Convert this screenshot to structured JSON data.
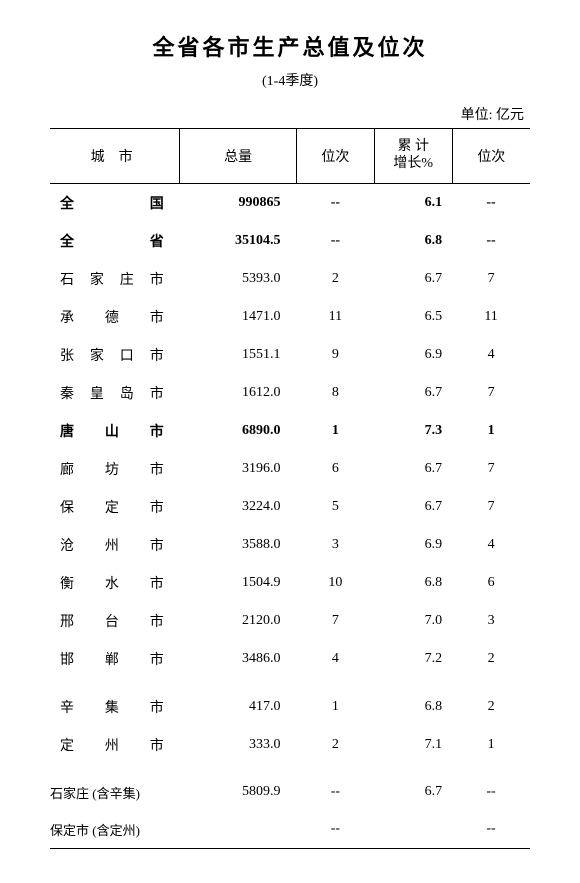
{
  "title": "全省各市生产总值及位次",
  "subtitle": "(1-4季度)",
  "unit_label": "单位: 亿元",
  "headers": {
    "city": "城　市",
    "total": "总量",
    "rank1": "位次",
    "growth": "累 计\n增长%",
    "rank2": "位次"
  },
  "groups": [
    {
      "rows": [
        {
          "city": "全　　国",
          "total": "990865",
          "rank1": "--",
          "growth": "6.1",
          "rank2": "--",
          "bold": true
        },
        {
          "city": "全　　省",
          "total": "35104.5",
          "rank1": "--",
          "growth": "6.8",
          "rank2": "--",
          "bold": true
        },
        {
          "city": "石家庄市",
          "total": "5393.0",
          "rank1": "2",
          "growth": "6.7",
          "rank2": "7"
        },
        {
          "city": "承 德 市",
          "total": "1471.0",
          "rank1": "11",
          "growth": "6.5",
          "rank2": "11"
        },
        {
          "city": "张家口市",
          "total": "1551.1",
          "rank1": "9",
          "growth": "6.9",
          "rank2": "4"
        },
        {
          "city": "秦皇岛市",
          "total": "1612.0",
          "rank1": "8",
          "growth": "6.7",
          "rank2": "7"
        },
        {
          "city": "唐 山 市",
          "total": "6890.0",
          "rank1": "1",
          "growth": "7.3",
          "rank2": "1",
          "bold": true
        },
        {
          "city": "廊 坊 市",
          "total": "3196.0",
          "rank1": "6",
          "growth": "6.7",
          "rank2": "7"
        },
        {
          "city": "保 定 市",
          "total": "3224.0",
          "rank1": "5",
          "growth": "6.7",
          "rank2": "7"
        },
        {
          "city": "沧 州 市",
          "total": "3588.0",
          "rank1": "3",
          "growth": "6.9",
          "rank2": "4"
        },
        {
          "city": "衡 水 市",
          "total": "1504.9",
          "rank1": "10",
          "growth": "6.8",
          "rank2": "6"
        },
        {
          "city": "邢 台 市",
          "total": "2120.0",
          "rank1": "7",
          "growth": "7.0",
          "rank2": "3"
        },
        {
          "city": "邯 郸 市",
          "total": "3486.0",
          "rank1": "4",
          "growth": "7.2",
          "rank2": "2"
        }
      ]
    },
    {
      "rows": [
        {
          "city": "辛 集 市",
          "total": "417.0",
          "rank1": "1",
          "growth": "6.8",
          "rank2": "2"
        },
        {
          "city": "定 州 市",
          "total": "333.0",
          "rank1": "2",
          "growth": "7.1",
          "rank2": "1"
        }
      ]
    },
    {
      "rows": [
        {
          "city": "石家庄 (含辛集)",
          "total": "5809.9",
          "rank1": "--",
          "growth": "6.7",
          "rank2": "--",
          "nojustify": true
        },
        {
          "city": "保定市 (含定州)",
          "total": "",
          "rank1": "--",
          "growth": "",
          "rank2": "--",
          "nojustify": true
        }
      ],
      "bottomborder": true
    }
  ],
  "style": {
    "background": "#ffffff",
    "text_color": "#000000",
    "border_color": "#000000",
    "title_fontsize": 22,
    "body_fontsize": 14,
    "font_family": "SimSun"
  }
}
